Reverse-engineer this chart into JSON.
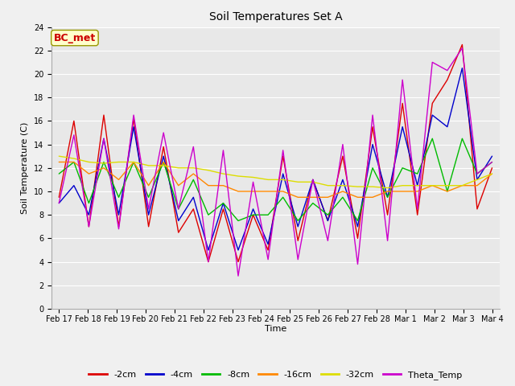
{
  "title": "Soil Temperatures Set A",
  "xlabel": "Time",
  "ylabel": "Soil Temperature (C)",
  "ylim": [
    0,
    24
  ],
  "yticks": [
    0,
    2,
    4,
    6,
    8,
    10,
    12,
    14,
    16,
    18,
    20,
    22,
    24
  ],
  "x_labels": [
    "Feb 17",
    "Feb 18",
    "Feb 19",
    "Feb 20",
    "Feb 21",
    "Feb 22",
    "Feb 23",
    "Feb 24",
    "Feb 25",
    "Feb 26",
    "Feb 27",
    "Feb 28",
    "Mar 1",
    "Mar 2",
    "Mar 3",
    "Mar 4"
  ],
  "series": {
    "-2cm": {
      "color": "#dd0000",
      "values": [
        9.5,
        16.0,
        7.0,
        16.5,
        7.0,
        16.2,
        7.0,
        13.8,
        6.5,
        8.5,
        4.0,
        8.5,
        4.0,
        8.0,
        5.0,
        13.0,
        5.8,
        11.0,
        7.5,
        13.0,
        6.0,
        15.5,
        8.0,
        17.5,
        8.0,
        17.5,
        19.5,
        22.5,
        8.5,
        12.0
      ]
    },
    "-4cm": {
      "color": "#0000cc",
      "values": [
        9.0,
        10.5,
        8.0,
        14.5,
        8.0,
        15.5,
        8.0,
        13.0,
        7.5,
        9.5,
        5.0,
        9.0,
        5.0,
        8.5,
        5.5,
        11.5,
        7.0,
        11.0,
        7.5,
        11.0,
        7.0,
        14.0,
        9.5,
        15.5,
        10.5,
        16.5,
        15.5,
        20.5,
        11.0,
        13.0
      ]
    },
    "-8cm": {
      "color": "#00bb00",
      "values": [
        11.5,
        12.5,
        9.0,
        12.5,
        9.5,
        12.5,
        9.5,
        12.5,
        8.5,
        11.0,
        8.0,
        9.0,
        7.5,
        8.0,
        8.0,
        9.5,
        7.5,
        9.0,
        8.0,
        9.5,
        7.5,
        12.0,
        9.5,
        12.0,
        11.5,
        14.5,
        10.0,
        14.5,
        11.5,
        12.5
      ]
    },
    "-16cm": {
      "color": "#ff8800",
      "values": [
        12.5,
        12.5,
        11.5,
        12.0,
        11.0,
        12.5,
        10.5,
        12.5,
        10.5,
        11.5,
        10.5,
        10.5,
        10.0,
        10.0,
        10.0,
        10.0,
        9.5,
        9.5,
        9.5,
        10.0,
        9.5,
        9.5,
        10.0,
        10.0,
        10.0,
        10.5,
        10.0,
        10.5,
        10.5,
        11.5
      ]
    },
    "-32cm": {
      "color": "#dddd00",
      "values": [
        13.0,
        12.8,
        12.5,
        12.4,
        12.5,
        12.5,
        12.2,
        12.2,
        12.0,
        12.0,
        11.8,
        11.5,
        11.3,
        11.2,
        11.0,
        11.0,
        10.8,
        10.8,
        10.5,
        10.5,
        10.4,
        10.4,
        10.3,
        10.5,
        10.5,
        10.5,
        10.5,
        10.5,
        11.0,
        11.5
      ]
    },
    "Theta_Temp": {
      "color": "#cc00cc",
      "values": [
        9.0,
        14.8,
        7.0,
        14.5,
        6.8,
        16.5,
        8.5,
        15.0,
        8.5,
        13.8,
        4.0,
        13.5,
        2.8,
        10.8,
        4.2,
        13.5,
        4.2,
        11.0,
        5.8,
        14.0,
        3.8,
        16.5,
        5.8,
        19.5,
        8.5,
        21.0,
        20.3,
        22.2,
        11.5,
        12.5
      ]
    }
  },
  "legend_order": [
    "-2cm",
    "-4cm",
    "-8cm",
    "-16cm",
    "-32cm",
    "Theta_Temp"
  ],
  "annotation_text": "BC_met",
  "annotation_color": "#cc0000",
  "annotation_bg": "#ffffcc",
  "annotation_edge": "#999900",
  "fig_bg": "#f0f0f0",
  "plot_bg": "#e8e8e8",
  "grid_color": "#ffffff",
  "title_fontsize": 10,
  "axis_label_fontsize": 8,
  "tick_fontsize": 7,
  "legend_fontsize": 8
}
